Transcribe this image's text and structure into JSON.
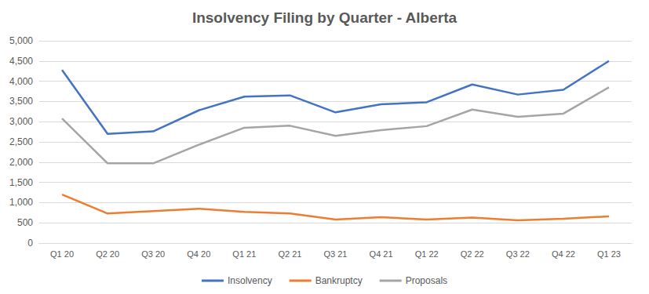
{
  "chart_data": {
    "type": "line",
    "title": "Insolvency Filing by Quarter - Alberta",
    "categories": [
      "Q1 20",
      "Q2 20",
      "Q3 20",
      "Q4 20",
      "Q1 21",
      "Q2 21",
      "Q3 21",
      "Q4 21",
      "Q1 22",
      "Q2 22",
      "Q3 22",
      "Q4 22",
      "Q1 23"
    ],
    "series": [
      {
        "name": "Insolvency",
        "color": "#4472c4",
        "values": [
          4280,
          2700,
          2760,
          3280,
          3620,
          3650,
          3230,
          3430,
          3480,
          3920,
          3670,
          3790,
          4500
        ]
      },
      {
        "name": "Bankruptcy",
        "color": "#ed7d31",
        "values": [
          1200,
          730,
          790,
          850,
          770,
          730,
          580,
          640,
          580,
          630,
          560,
          600,
          660
        ]
      },
      {
        "name": "Proposals",
        "color": "#a5a5a5",
        "values": [
          3080,
          1970,
          1970,
          2430,
          2850,
          2900,
          2650,
          2790,
          2890,
          3300,
          3120,
          3200,
          3850
        ]
      }
    ],
    "ylim": [
      0,
      5000
    ],
    "yticks": [
      0,
      500,
      1000,
      1500,
      2000,
      2500,
      3000,
      3500,
      4000,
      4500,
      5000
    ],
    "grid": true,
    "legend": "bottom",
    "marker": "none"
  }
}
